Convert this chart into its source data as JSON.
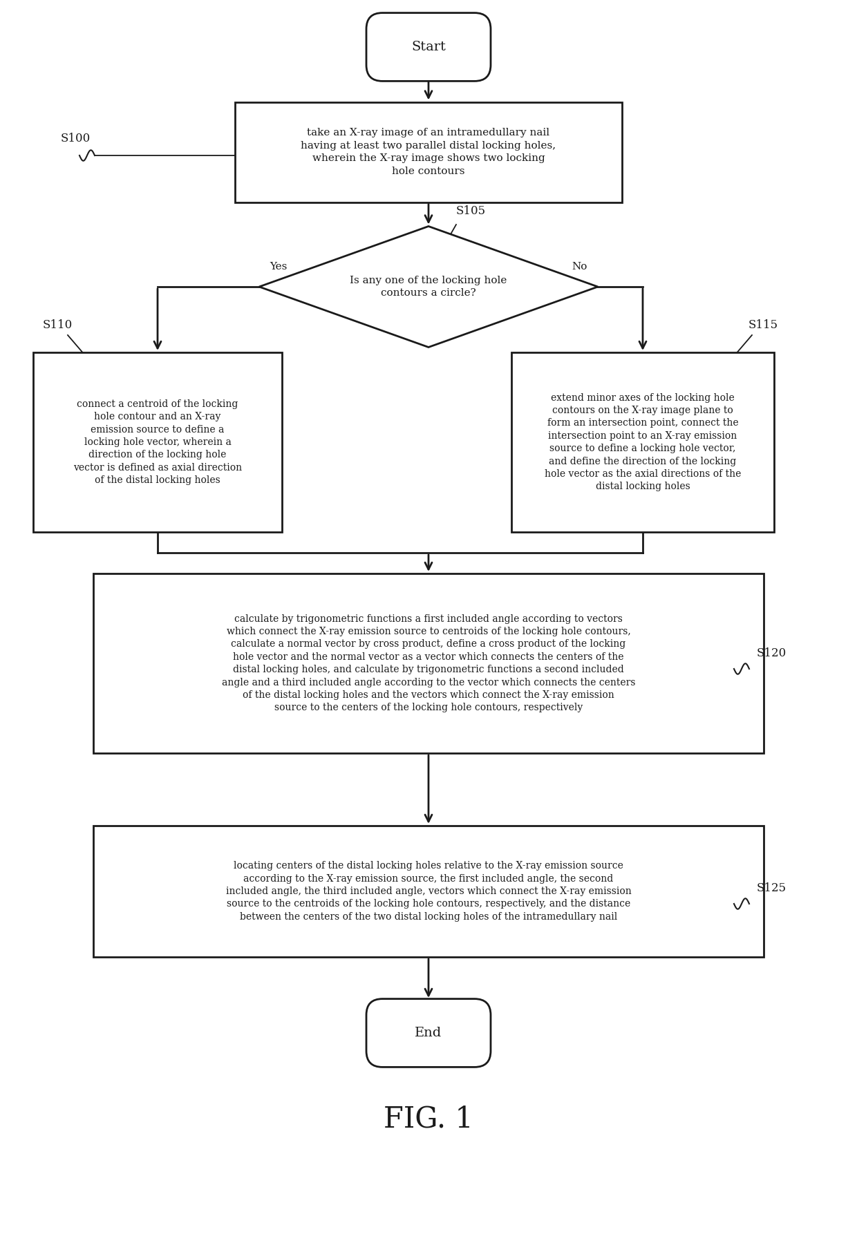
{
  "bg_color": "#ffffff",
  "line_color": "#1a1a1a",
  "text_color": "#1a1a1a",
  "fig_width": 12.4,
  "fig_height": 18.12,
  "title": "FIG. 1",
  "start_text": "Start",
  "end_text": "End",
  "s100_label": "S100",
  "s105_label": "S105",
  "s110_label": "S110",
  "s115_label": "S115",
  "s120_label": "S120",
  "s125_label": "S125",
  "box100_text": "take an X-ray image of an intramedullary nail\nhaving at least two parallel distal locking holes,\nwherein the X-ray image shows two locking\nhole contours",
  "diamond_text": "Is any one of the locking hole\ncontours a circle?",
  "yes_label": "Yes",
  "no_label": "No",
  "box110_text": "connect a centroid of the locking\nhole contour and an X-ray\nemission source to define a\nlocking hole vector, wherein a\ndirection of the locking hole\nvector is defined as axial direction\nof the distal locking holes",
  "box115_text": "extend minor axes of the locking hole\ncontours on the X-ray image plane to\nform an intersection point, connect the\nintersection point to an X-ray emission\nsource to define a locking hole vector,\nand define the direction of the locking\nhole vector as the axial directions of the\ndistal locking holes",
  "box120_text": "calculate by trigonometric functions a first included angle according to vectors\nwhich connect the X-ray emission source to centroids of the locking hole contours,\ncalculate a normal vector by cross product, define a cross product of the locking\nhole vector and the normal vector as a vector which connects the centers of the\ndistal locking holes, and calculate by trigonometric functions a second included\nangle and a third included angle according to the vector which connects the centers\nof the distal locking holes and the vectors which connect the X-ray emission\nsource to the centers of the locking hole contours, respectively",
  "box125_text": "locating centers of the distal locking holes relative to the X-ray emission source\naccording to the X-ray emission source, the first included angle, the second\nincluded angle, the third included angle, vectors which connect the X-ray emission\nsource to the centroids of the locking hole contours, respectively, and the distance\nbetween the centers of the two distal locking holes of the intramedullary nail"
}
